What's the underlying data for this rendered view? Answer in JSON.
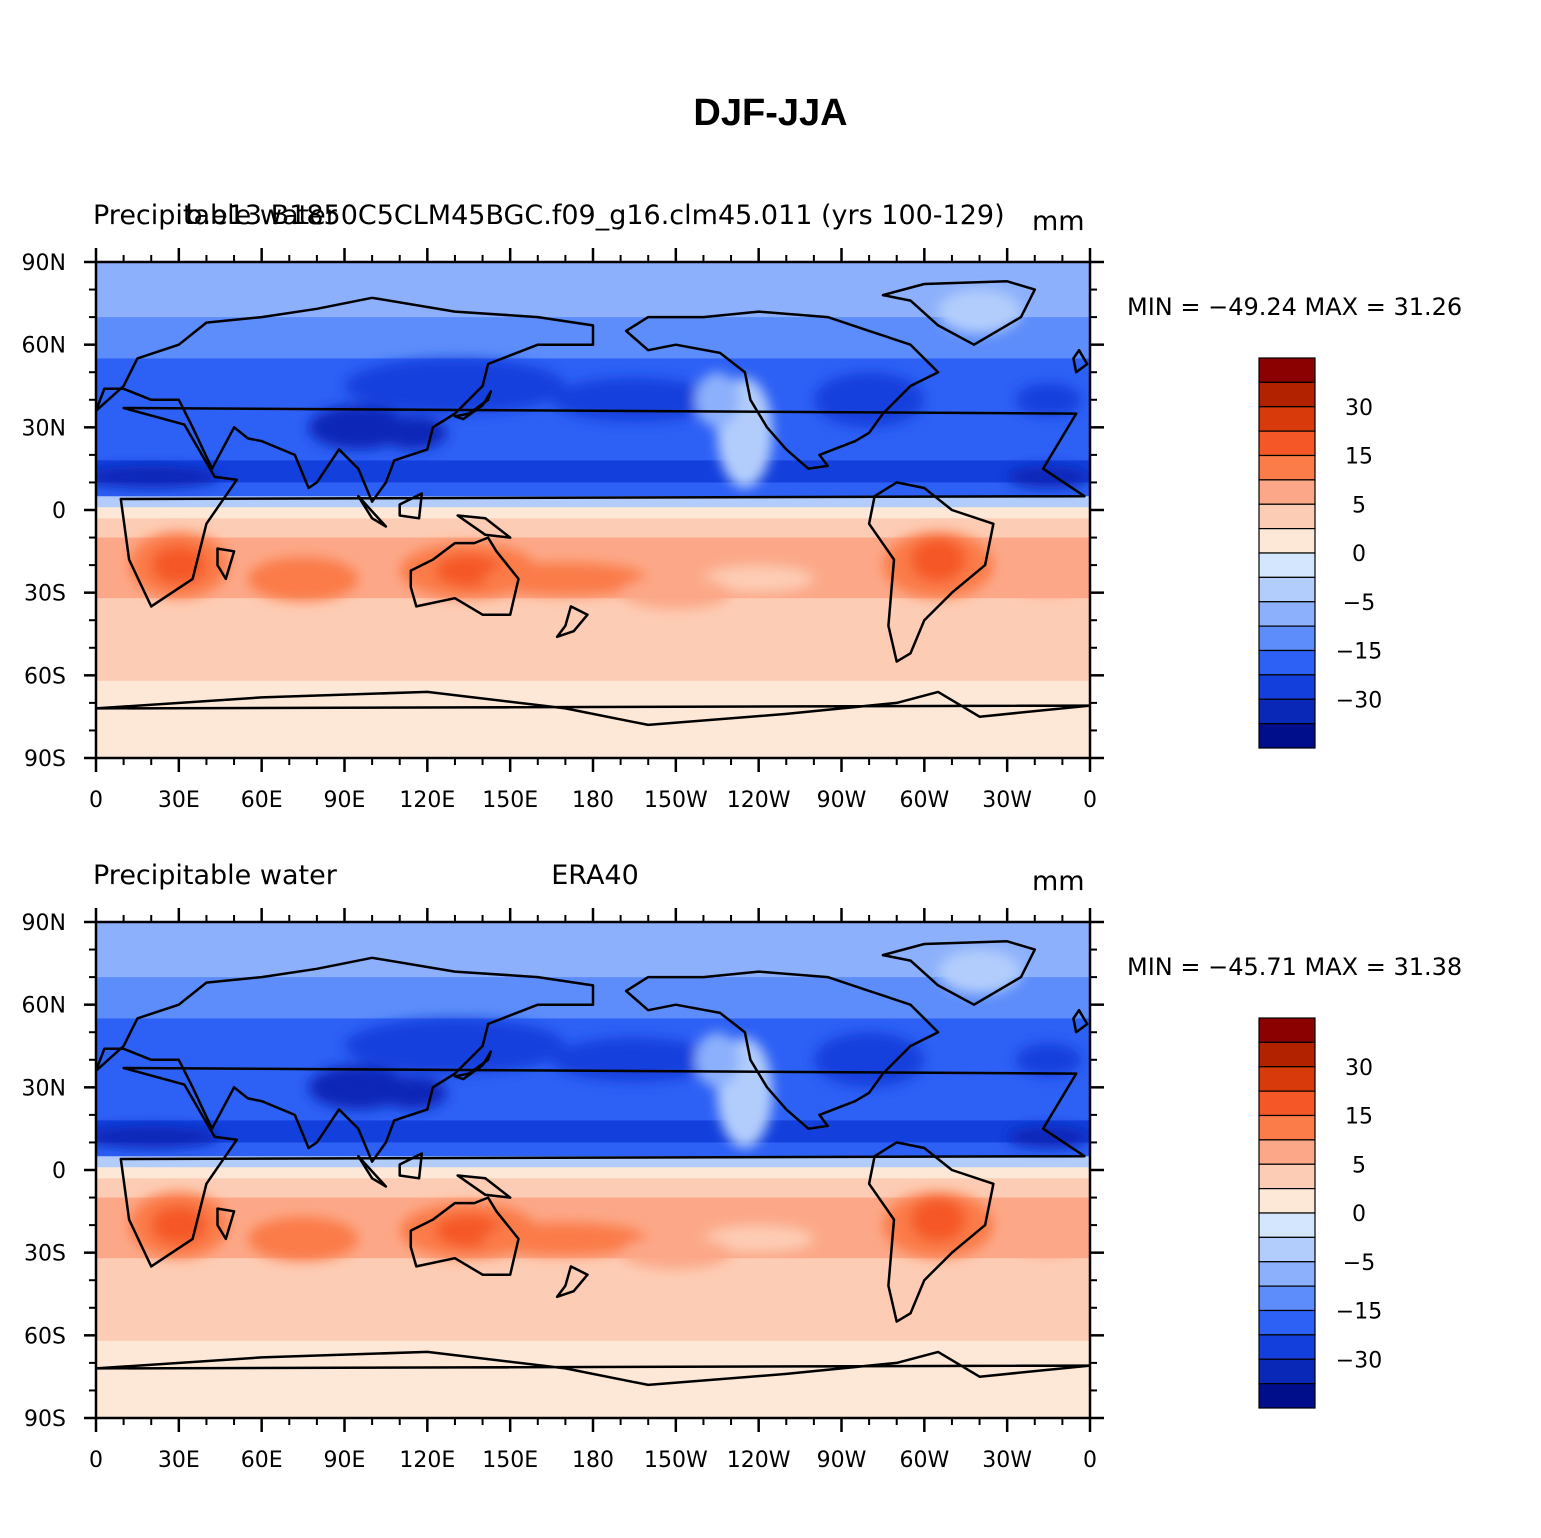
{
  "figure": {
    "title": "DJF-JJA"
  },
  "panels": [
    {
      "left_label": "Precipitable water",
      "center_label": "b.e13.B1850C5CLM45BGC.f09_g16.clm45.011 (yrs 100-129)",
      "right_label": "mm",
      "stats": "MIN = −49.24  MAX =   31.26"
    },
    {
      "left_label": "Precipitable water",
      "center_label": "ERA40",
      "right_label": "mm",
      "stats": "MIN = −45.71  MAX =   31.38"
    }
  ],
  "map": {
    "lat_tick_labels": [
      "90N",
      "60N",
      "30N",
      "0",
      "30S",
      "60S",
      "90S"
    ],
    "lon_tick_labels": [
      "0",
      "30E",
      "60E",
      "90E",
      "120E",
      "150E",
      "180",
      "150W",
      "120W",
      "90W",
      "60W",
      "30W",
      "0"
    ]
  },
  "colorbar": {
    "labels": [
      "30",
      "15",
      "5",
      "0",
      "−5",
      "−15",
      "−30"
    ],
    "colors": [
      "#8b0000",
      "#b22200",
      "#d83a0c",
      "#f55826",
      "#fb7c48",
      "#fca888",
      "#fdccb4",
      "#fde8d8",
      "#d4e6fd",
      "#b2cdfc",
      "#8cb0fb",
      "#5d8dfa",
      "#2d60f5",
      "#1340dd",
      "#0a28b8",
      "#000e8c"
    ]
  },
  "chart_data": {
    "type": "heatmap",
    "title": "DJF-JJA",
    "units": "mm",
    "x_ticks": [
      "0",
      "30E",
      "60E",
      "90E",
      "120E",
      "150E",
      "180",
      "150W",
      "120W",
      "90W",
      "60W",
      "30W",
      "0"
    ],
    "y_ticks": [
      "90N",
      "60N",
      "30N",
      "0",
      "30S",
      "60S",
      "90S"
    ],
    "xlim": [
      0,
      360
    ],
    "ylim": [
      -90,
      90
    ],
    "contour_levels": [
      -40,
      -35,
      -30,
      -25,
      -20,
      -15,
      -10,
      -5,
      0,
      5,
      10,
      15,
      20,
      25,
      30
    ],
    "colorbar_labels": [
      "30",
      "15",
      "5",
      "0",
      "−5",
      "−15",
      "−30"
    ],
    "panels": [
      {
        "name": "b.e13.B1850C5CLM45BGC.f09_g16.clm45.011 (yrs 100-129)",
        "min": -49.24,
        "max": 31.26
      },
      {
        "name": "ERA40",
        "min": -45.71,
        "max": 31.38
      }
    ]
  }
}
